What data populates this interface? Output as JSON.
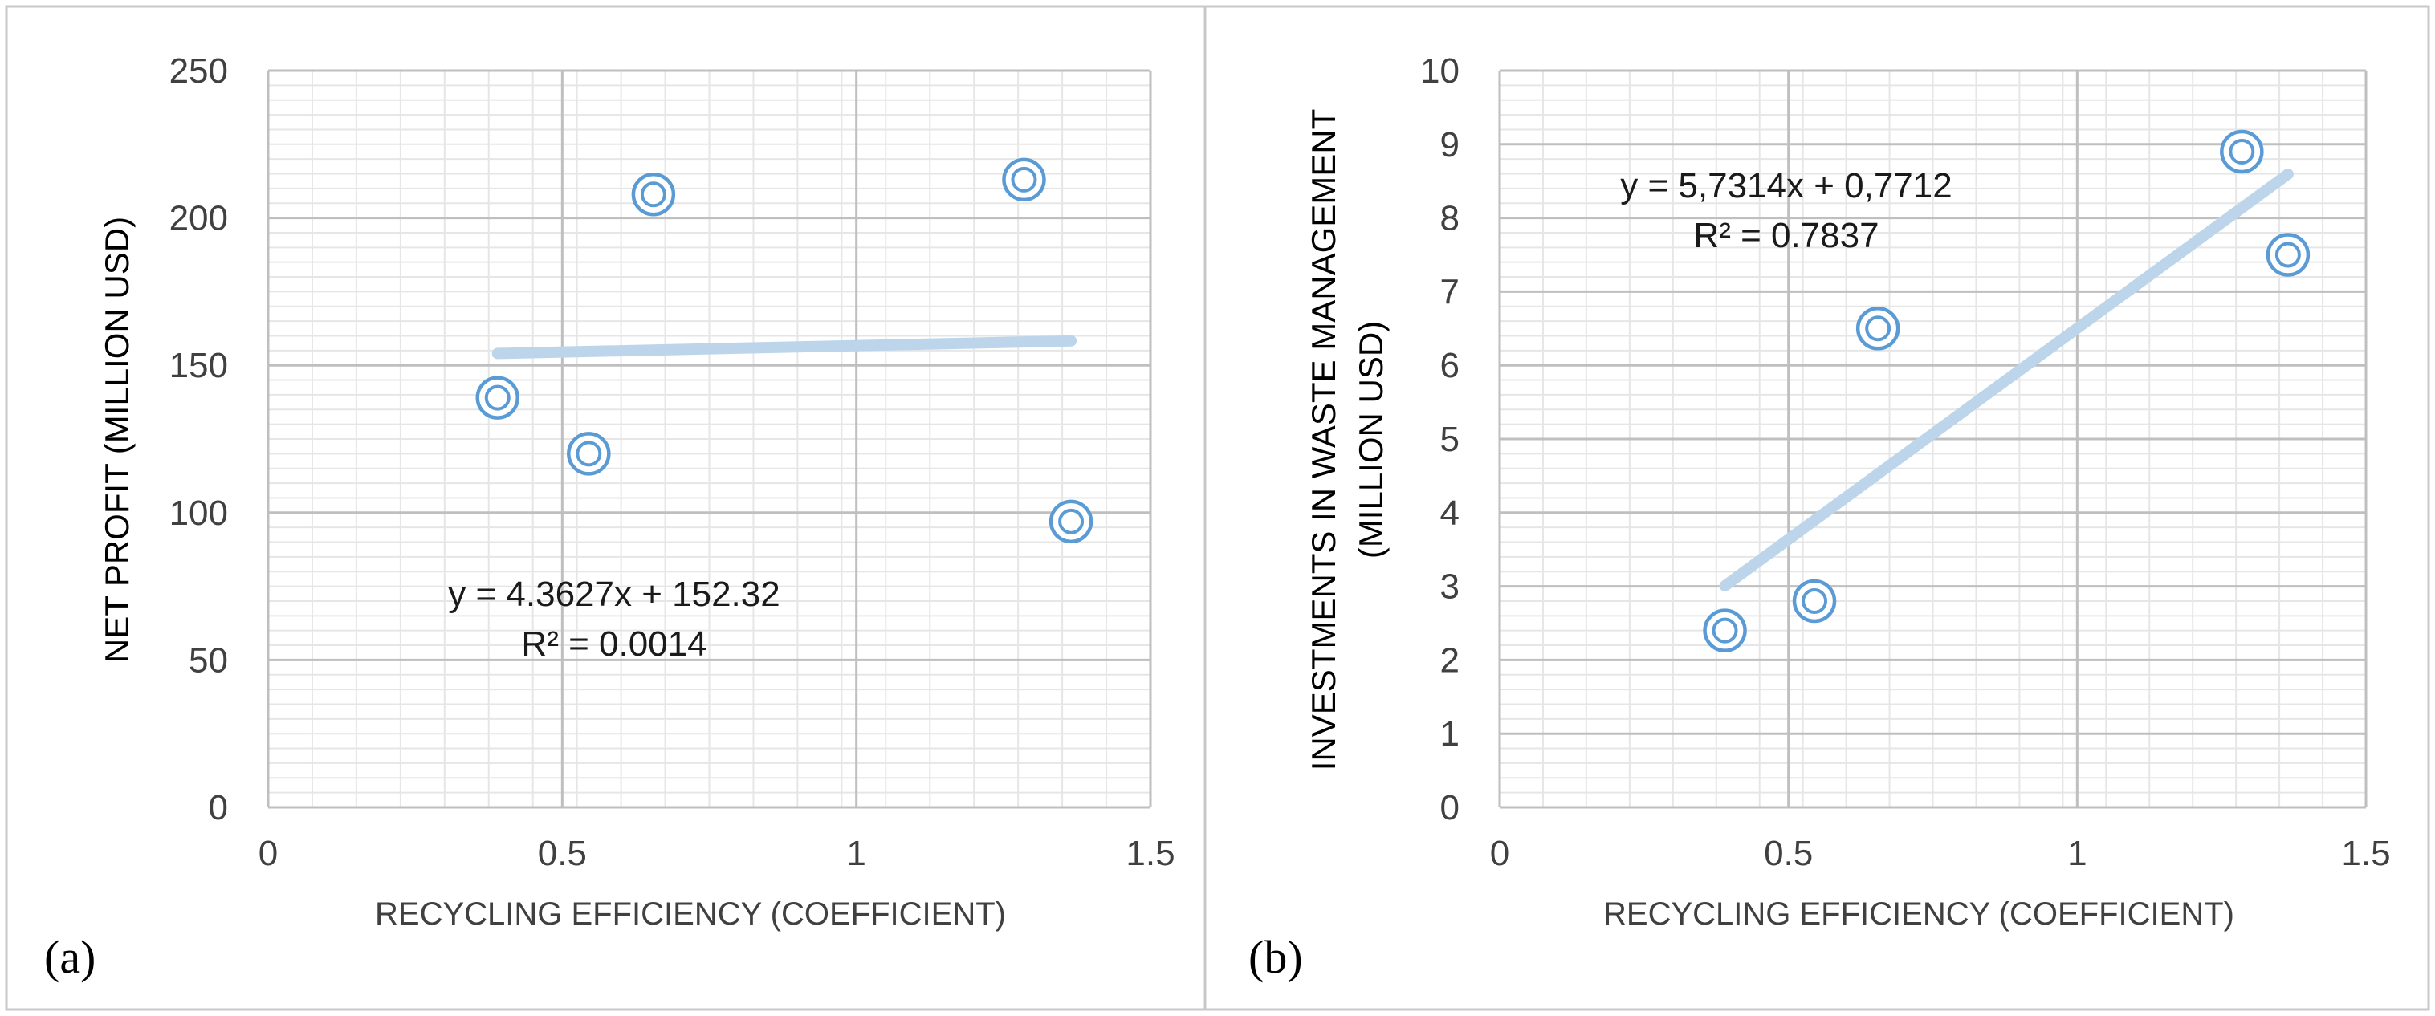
{
  "chart_data": [
    {
      "type": "scatter",
      "panel_label": "(a)",
      "title": "",
      "xlabel": "RECYCLING EFFICIENCY (COEFFICIENT)",
      "ylabel": "NET PROFIT (MILLION USD)",
      "xlim": [
        0,
        1.5
      ],
      "ylim": [
        0,
        250
      ],
      "x_ticks": [
        0,
        0.5,
        1,
        1.5
      ],
      "x_tick_labels": [
        "0",
        "0.5",
        "1",
        "1.5"
      ],
      "y_ticks": [
        0,
        50,
        100,
        150,
        200,
        250
      ],
      "y_tick_labels": [
        "0",
        "50",
        "100",
        "150",
        "200",
        "250"
      ],
      "grid": true,
      "points": {
        "x": [
          0.39,
          0.545,
          0.655,
          1.285,
          1.365
        ],
        "y": [
          139,
          120,
          208,
          213,
          97
        ]
      },
      "trendline": {
        "slope": 4.3627,
        "intercept": 152.32,
        "x_range": [
          0.39,
          1.365
        ]
      },
      "equation": "y = 4.3627x + 152.32",
      "r_squared": "R² = 0.0014",
      "marker_color": "#5b9bd5",
      "trend_color": "#bcd5ea"
    },
    {
      "type": "scatter",
      "panel_label": "(b)",
      "title": "",
      "xlabel": "RECYCLING EFFICIENCY (COEFFICIENT)",
      "ylabel_lines": [
        "INVESTMENTS IN WASTE MANAGEMENT",
        "(MILLION USD)"
      ],
      "xlim": [
        0,
        1.5
      ],
      "ylim": [
        0,
        10
      ],
      "x_ticks": [
        0,
        0.5,
        1,
        1.5
      ],
      "x_tick_labels": [
        "0",
        "0.5",
        "1",
        "1.5"
      ],
      "y_ticks": [
        0,
        1,
        2,
        3,
        4,
        5,
        6,
        7,
        8,
        9,
        10
      ],
      "y_tick_labels": [
        "0",
        "1",
        "2",
        "3",
        "4",
        "5",
        "6",
        "7",
        "8",
        "9",
        "10"
      ],
      "grid": true,
      "points": {
        "x": [
          0.39,
          0.545,
          0.655,
          1.285,
          1.365
        ],
        "y": [
          2.4,
          2.8,
          6.5,
          8.9,
          7.5
        ]
      },
      "trendline": {
        "slope": 5.7314,
        "intercept": 0.7712,
        "x_range": [
          0.39,
          1.365
        ]
      },
      "equation": "y = 5,7314x + 0,7712",
      "r_squared": "R² = 0.7837",
      "marker_color": "#5b9bd5",
      "trend_color": "#bcd5ea"
    }
  ]
}
